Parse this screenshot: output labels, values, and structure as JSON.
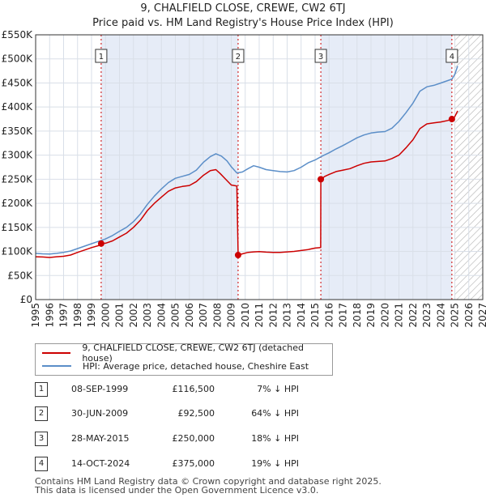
{
  "chart_data": {
    "type": "line",
    "title": "9, CHALFIELD CLOSE, CREWE, CW2 6TJ",
    "subtitle": "Price paid vs. HM Land Registry's House Price Index (HPI)",
    "xlim": [
      1995,
      2027
    ],
    "ylim": [
      0,
      550000
    ],
    "y_ticks": [
      0,
      50000,
      100000,
      150000,
      200000,
      250000,
      300000,
      350000,
      400000,
      450000,
      500000,
      550000
    ],
    "y_tick_labels": [
      "£0",
      "£50K",
      "£100K",
      "£150K",
      "£200K",
      "£250K",
      "£300K",
      "£350K",
      "£400K",
      "£450K",
      "£500K",
      "£550K"
    ],
    "x_ticks": [
      1995,
      1996,
      1997,
      1998,
      1999,
      2000,
      2001,
      2002,
      2003,
      2004,
      2005,
      2006,
      2007,
      2008,
      2009,
      2010,
      2011,
      2012,
      2013,
      2014,
      2015,
      2016,
      2017,
      2018,
      2019,
      2020,
      2021,
      2022,
      2023,
      2024,
      2025,
      2026,
      2027
    ],
    "x_tick_labels": [
      "1995",
      "1996",
      "1997",
      "1998",
      "1999",
      "2000",
      "2001",
      "2002",
      "2003",
      "2004",
      "2005",
      "2006",
      "2007",
      "2008",
      "2009",
      "2010",
      "2011",
      "2012",
      "2013",
      "2014",
      "2015",
      "2016",
      "2017",
      "2018",
      "2019",
      "2020",
      "2021",
      "2022",
      "2023",
      "2024",
      "2025",
      "2026",
      "2027"
    ],
    "forecast_start": 2025.0,
    "series": [
      {
        "name": "9, CHALFIELD CLOSE, CREWE, CW2 6TJ (detached house)",
        "color": "#cc0000",
        "points": [
          [
            1995.0,
            89000
          ],
          [
            1995.5,
            88500
          ],
          [
            1996.0,
            87500
          ],
          [
            1996.5,
            89000
          ],
          [
            1997.0,
            90000
          ],
          [
            1997.5,
            92500
          ],
          [
            1998.0,
            98000
          ],
          [
            1998.5,
            103000
          ],
          [
            1999.0,
            108000
          ],
          [
            1999.5,
            112000
          ],
          [
            1999.69,
            116500
          ],
          [
            2000.0,
            117000
          ],
          [
            2000.5,
            122000
          ],
          [
            2001.0,
            130000
          ],
          [
            2001.5,
            138000
          ],
          [
            2002.0,
            150000
          ],
          [
            2002.5,
            165000
          ],
          [
            2003.0,
            185000
          ],
          [
            2003.5,
            200000
          ],
          [
            2004.0,
            213000
          ],
          [
            2004.5,
            225000
          ],
          [
            2005.0,
            232000
          ],
          [
            2005.5,
            235000
          ],
          [
            2006.0,
            237000
          ],
          [
            2006.5,
            245000
          ],
          [
            2007.0,
            258000
          ],
          [
            2007.5,
            268000
          ],
          [
            2007.9,
            270000
          ],
          [
            2008.2,
            262000
          ],
          [
            2008.6,
            250000
          ],
          [
            2009.0,
            238000
          ],
          [
            2009.4,
            236000
          ],
          [
            2009.49,
            92500
          ],
          [
            2009.8,
            95000
          ],
          [
            2010.2,
            98000
          ],
          [
            2010.6,
            99000
          ],
          [
            2011.0,
            99500
          ],
          [
            2011.5,
            98500
          ],
          [
            2012.0,
            98000
          ],
          [
            2012.5,
            98000
          ],
          [
            2013.0,
            99000
          ],
          [
            2013.5,
            100000
          ],
          [
            2014.0,
            102000
          ],
          [
            2014.5,
            104000
          ],
          [
            2015.0,
            107000
          ],
          [
            2015.4,
            108000
          ],
          [
            2015.41,
            250000
          ],
          [
            2015.7,
            256000
          ],
          [
            2016.0,
            260000
          ],
          [
            2016.5,
            266000
          ],
          [
            2017.0,
            269000
          ],
          [
            2017.5,
            272000
          ],
          [
            2018.0,
            278000
          ],
          [
            2018.5,
            283000
          ],
          [
            2019.0,
            286000
          ],
          [
            2019.5,
            287000
          ],
          [
            2020.0,
            288000
          ],
          [
            2020.5,
            293000
          ],
          [
            2021.0,
            300000
          ],
          [
            2021.5,
            315000
          ],
          [
            2022.0,
            332000
          ],
          [
            2022.5,
            355000
          ],
          [
            2023.0,
            365000
          ],
          [
            2023.5,
            367000
          ],
          [
            2024.0,
            369000
          ],
          [
            2024.5,
            372000
          ],
          [
            2024.79,
            375000
          ],
          [
            2025.0,
            380000
          ],
          [
            2025.2,
            392000
          ]
        ]
      },
      {
        "name": "HPI: Average price, detached house, Cheshire East",
        "color": "#5b8ec8",
        "points": [
          [
            1995.0,
            96000
          ],
          [
            1995.5,
            95000
          ],
          [
            1996.0,
            94500
          ],
          [
            1996.5,
            96000
          ],
          [
            1997.0,
            98000
          ],
          [
            1997.5,
            101000
          ],
          [
            1998.0,
            106000
          ],
          [
            1998.5,
            111000
          ],
          [
            1999.0,
            116000
          ],
          [
            1999.5,
            121000
          ],
          [
            2000.0,
            126000
          ],
          [
            2000.5,
            133000
          ],
          [
            2001.0,
            142000
          ],
          [
            2001.5,
            150000
          ],
          [
            2002.0,
            162000
          ],
          [
            2002.5,
            178000
          ],
          [
            2003.0,
            198000
          ],
          [
            2003.5,
            215000
          ],
          [
            2004.0,
            230000
          ],
          [
            2004.5,
            243000
          ],
          [
            2005.0,
            252000
          ],
          [
            2005.5,
            256000
          ],
          [
            2006.0,
            260000
          ],
          [
            2006.5,
            269000
          ],
          [
            2007.0,
            285000
          ],
          [
            2007.5,
            297000
          ],
          [
            2007.9,
            303000
          ],
          [
            2008.3,
            298000
          ],
          [
            2008.7,
            288000
          ],
          [
            2009.0,
            276000
          ],
          [
            2009.4,
            263000
          ],
          [
            2009.8,
            265000
          ],
          [
            2010.2,
            272000
          ],
          [
            2010.6,
            278000
          ],
          [
            2011.0,
            275000
          ],
          [
            2011.5,
            270000
          ],
          [
            2012.0,
            268000
          ],
          [
            2012.5,
            266000
          ],
          [
            2013.0,
            265000
          ],
          [
            2013.5,
            268000
          ],
          [
            2014.0,
            275000
          ],
          [
            2014.5,
            284000
          ],
          [
            2015.0,
            290000
          ],
          [
            2015.5,
            298000
          ],
          [
            2016.0,
            305000
          ],
          [
            2016.5,
            313000
          ],
          [
            2017.0,
            320000
          ],
          [
            2017.5,
            328000
          ],
          [
            2018.0,
            336000
          ],
          [
            2018.5,
            342000
          ],
          [
            2019.0,
            346000
          ],
          [
            2019.5,
            348000
          ],
          [
            2020.0,
            349000
          ],
          [
            2020.5,
            356000
          ],
          [
            2021.0,
            370000
          ],
          [
            2021.5,
            388000
          ],
          [
            2022.0,
            408000
          ],
          [
            2022.5,
            433000
          ],
          [
            2023.0,
            442000
          ],
          [
            2023.5,
            445000
          ],
          [
            2024.0,
            450000
          ],
          [
            2024.5,
            455000
          ],
          [
            2024.8,
            458000
          ],
          [
            2025.0,
            468000
          ],
          [
            2025.2,
            485000
          ]
        ]
      }
    ],
    "sales": [
      {
        "id": "1",
        "date": "08-SEP-1999",
        "price": "£116,500",
        "hpi": "7% ↓ HPI",
        "x": 1999.69,
        "y": 116500
      },
      {
        "id": "2",
        "date": "30-JUN-2009",
        "price": "£92,500",
        "hpi": "64% ↓ HPI",
        "x": 2009.49,
        "y": 92500
      },
      {
        "id": "3",
        "date": "28-MAY-2015",
        "price": "£250,000",
        "hpi": "18% ↓ HPI",
        "x": 2015.41,
        "y": 250000
      },
      {
        "id": "4",
        "date": "14-OCT-2024",
        "price": "£375,000",
        "hpi": "19% ↓ HPI",
        "x": 2024.79,
        "y": 375000
      }
    ],
    "legend": {
      "property_label": "9, CHALFIELD CLOSE, CREWE, CW2 6TJ (detached house)",
      "hpi_label": "HPI: Average price, detached house, Cheshire East"
    }
  },
  "footer": {
    "line1": "Contains HM Land Registry data © Crown copyright and database right 2025.",
    "line2": "This data is licensed under the Open Government Licence v3.0."
  },
  "colors": {
    "property": "#cc0000",
    "hpi": "#5b8ec8",
    "shade": "#e6ecf7",
    "grid": "#d9dfe8"
  }
}
